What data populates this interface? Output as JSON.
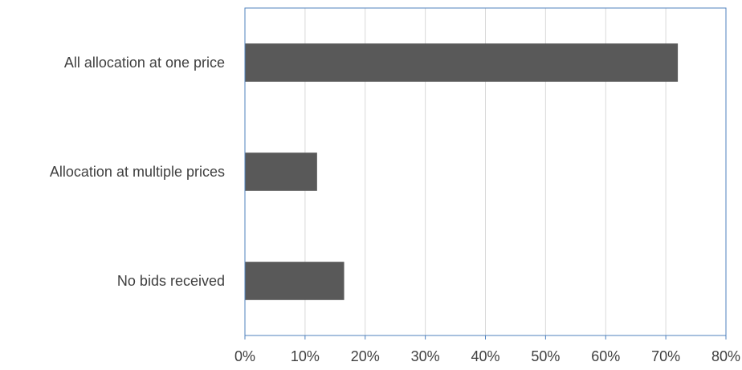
{
  "chart_data": {
    "type": "bar",
    "orientation": "horizontal",
    "categories": [
      "All allocation at one price",
      "Allocation at multiple prices",
      "No bids received"
    ],
    "values": [
      72,
      12,
      16.5
    ],
    "value_unit": "%",
    "xlim": [
      0,
      80
    ],
    "x_ticks": [
      0,
      10,
      20,
      30,
      40,
      50,
      60,
      70,
      80
    ],
    "x_tick_labels": [
      "0%",
      "10%",
      "20%",
      "30%",
      "40%",
      "50%",
      "60%",
      "70%",
      "80%"
    ],
    "grid": true,
    "legend": "none",
    "colors": {
      "bar": "#595959",
      "grid": "#d9d9d9",
      "axis": "#4f81bd",
      "text": "#404040"
    }
  }
}
